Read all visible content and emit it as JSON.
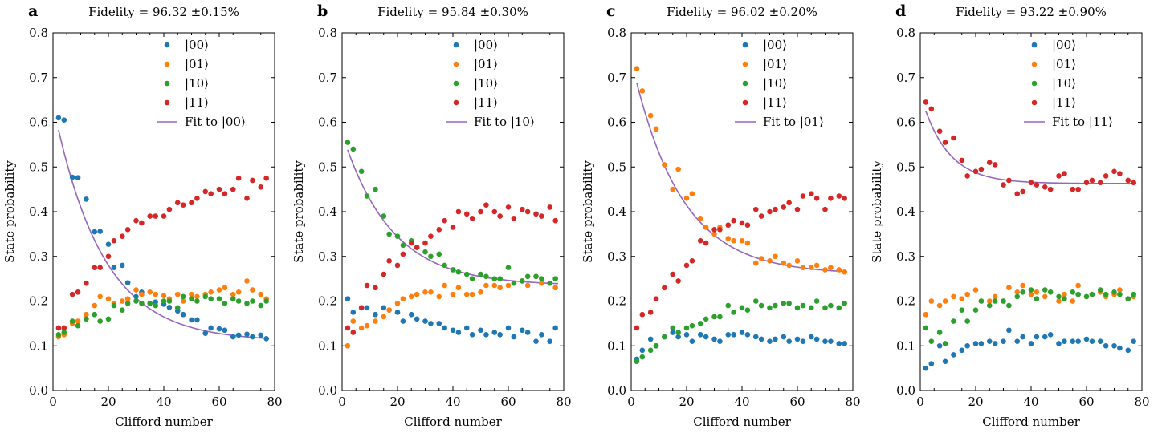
{
  "chart_data": [
    {
      "type": "scatter",
      "panel_label": "a",
      "title": "Fidelity = 96.32 ±0.15%",
      "xlabel": "Clifford number",
      "ylabel": "State probability",
      "xlim": [
        0,
        80
      ],
      "ylim": [
        0.0,
        0.8
      ],
      "xticks": [
        0,
        20,
        40,
        60,
        80
      ],
      "yticks": [
        0.0,
        0.1,
        0.2,
        0.3,
        0.4,
        0.5,
        0.6,
        0.7,
        0.8
      ],
      "grid": false,
      "legend_position": "top-right",
      "x": [
        2,
        4,
        7,
        9,
        12,
        15,
        17,
        20,
        22,
        25,
        27,
        30,
        32,
        35,
        37,
        40,
        42,
        45,
        47,
        50,
        52,
        55,
        57,
        60,
        62,
        65,
        67,
        70,
        72,
        75,
        77
      ],
      "series": [
        {
          "name": "|00⟩",
          "color": "#1f77b4",
          "values": [
            0.61,
            0.605,
            0.477,
            0.476,
            0.428,
            0.355,
            0.356,
            0.327,
            0.275,
            0.28,
            0.241,
            0.21,
            0.22,
            0.195,
            0.198,
            0.193,
            0.186,
            0.178,
            0.17,
            0.158,
            0.158,
            0.128,
            0.14,
            0.138,
            0.135,
            0.12,
            0.124,
            0.126,
            0.12,
            0.124,
            0.116
          ]
        },
        {
          "name": "|01⟩",
          "color": "#ff7f0e",
          "values": [
            0.12,
            0.125,
            0.15,
            0.155,
            0.17,
            0.19,
            0.21,
            0.205,
            0.195,
            0.2,
            0.205,
            0.225,
            0.215,
            0.22,
            0.215,
            0.212,
            0.205,
            0.215,
            0.2,
            0.215,
            0.21,
            0.215,
            0.22,
            0.225,
            0.23,
            0.215,
            0.22,
            0.245,
            0.225,
            0.215,
            0.205
          ]
        },
        {
          "name": "|10⟩",
          "color": "#2ca02c",
          "values": [
            0.125,
            0.13,
            0.155,
            0.145,
            0.16,
            0.17,
            0.155,
            0.16,
            0.19,
            0.18,
            0.195,
            0.2,
            0.195,
            0.195,
            0.19,
            0.2,
            0.2,
            0.185,
            0.21,
            0.205,
            0.2,
            0.21,
            0.205,
            0.205,
            0.195,
            0.205,
            0.2,
            0.195,
            0.2,
            0.19,
            0.2
          ]
        },
        {
          "name": "|11⟩",
          "color": "#d62728",
          "values": [
            0.14,
            0.14,
            0.215,
            0.22,
            0.24,
            0.275,
            0.275,
            0.3,
            0.335,
            0.345,
            0.36,
            0.38,
            0.375,
            0.39,
            0.39,
            0.39,
            0.405,
            0.42,
            0.415,
            0.42,
            0.43,
            0.445,
            0.44,
            0.45,
            0.44,
            0.45,
            0.475,
            0.43,
            0.47,
            0.455,
            0.475
          ]
        }
      ],
      "fit": {
        "name": "Fit to |00⟩",
        "color": "#9467bd",
        "a": 0.53,
        "p": 0.9448,
        "b": 0.11
      }
    },
    {
      "type": "scatter",
      "panel_label": "b",
      "title": "Fidelity = 95.84 ±0.30%",
      "xlabel": "Clifford number",
      "ylabel": "State probability",
      "xlim": [
        0,
        80
      ],
      "ylim": [
        0.0,
        0.8
      ],
      "xticks": [
        0,
        20,
        40,
        60,
        80
      ],
      "yticks": [
        0.0,
        0.1,
        0.2,
        0.3,
        0.4,
        0.5,
        0.6,
        0.7,
        0.8
      ],
      "grid": false,
      "legend_position": "top-right",
      "x": [
        2,
        4,
        7,
        9,
        12,
        15,
        17,
        20,
        22,
        25,
        27,
        30,
        32,
        35,
        37,
        40,
        42,
        45,
        47,
        50,
        52,
        55,
        57,
        60,
        62,
        65,
        67,
        70,
        72,
        75,
        77
      ],
      "series": [
        {
          "name": "|00⟩",
          "color": "#1f77b4",
          "values": [
            0.205,
            0.175,
            0.185,
            0.185,
            0.17,
            0.185,
            0.18,
            0.175,
            0.155,
            0.17,
            0.16,
            0.155,
            0.15,
            0.15,
            0.14,
            0.135,
            0.13,
            0.14,
            0.125,
            0.135,
            0.125,
            0.13,
            0.125,
            0.14,
            0.12,
            0.135,
            0.13,
            0.11,
            0.125,
            0.11,
            0.14
          ]
        },
        {
          "name": "|01⟩",
          "color": "#ff7f0e",
          "values": [
            0.1,
            0.155,
            0.14,
            0.145,
            0.155,
            0.165,
            0.18,
            0.195,
            0.205,
            0.21,
            0.215,
            0.22,
            0.22,
            0.21,
            0.235,
            0.215,
            0.23,
            0.215,
            0.215,
            0.22,
            0.235,
            0.235,
            0.23,
            0.235,
            0.24,
            0.245,
            0.235,
            0.255,
            0.24,
            0.24,
            0.23
          ]
        },
        {
          "name": "|10⟩",
          "color": "#2ca02c",
          "values": [
            0.555,
            0.54,
            0.49,
            0.435,
            0.45,
            0.39,
            0.35,
            0.345,
            0.325,
            0.335,
            0.32,
            0.31,
            0.3,
            0.305,
            0.28,
            0.27,
            0.265,
            0.26,
            0.25,
            0.26,
            0.255,
            0.25,
            0.25,
            0.275,
            0.24,
            0.245,
            0.255,
            0.255,
            0.25,
            0.24,
            0.25
          ]
        },
        {
          "name": "|11⟩",
          "color": "#d62728",
          "values": [
            0.14,
            0.13,
            0.185,
            0.235,
            0.23,
            0.26,
            0.29,
            0.28,
            0.305,
            0.33,
            0.32,
            0.33,
            0.345,
            0.36,
            0.38,
            0.365,
            0.4,
            0.395,
            0.385,
            0.4,
            0.415,
            0.4,
            0.39,
            0.41,
            0.385,
            0.405,
            0.4,
            0.395,
            0.39,
            0.41,
            0.38
          ]
        }
      ],
      "fit": {
        "name": "Fit to |10⟩",
        "color": "#9467bd",
        "a": 0.34,
        "p": 0.9448,
        "b": 0.235
      }
    },
    {
      "type": "scatter",
      "panel_label": "c",
      "title": "Fidelity = 96.02 ±0.20%",
      "xlabel": "Clifford number",
      "ylabel": "State probability",
      "xlim": [
        0,
        80
      ],
      "ylim": [
        0.0,
        0.8
      ],
      "xticks": [
        0,
        20,
        40,
        60,
        80
      ],
      "yticks": [
        0.0,
        0.1,
        0.2,
        0.3,
        0.4,
        0.5,
        0.6,
        0.7,
        0.8
      ],
      "grid": false,
      "legend_position": "top-right",
      "x": [
        2,
        4,
        7,
        9,
        12,
        15,
        17,
        20,
        22,
        25,
        27,
        30,
        32,
        35,
        37,
        40,
        42,
        45,
        47,
        50,
        52,
        55,
        57,
        60,
        62,
        65,
        67,
        70,
        72,
        75,
        77
      ],
      "series": [
        {
          "name": "|00⟩",
          "color": "#1f77b4",
          "values": [
            0.07,
            0.09,
            0.115,
            0.1,
            0.12,
            0.13,
            0.12,
            0.125,
            0.11,
            0.125,
            0.12,
            0.115,
            0.11,
            0.125,
            0.125,
            0.13,
            0.125,
            0.12,
            0.115,
            0.11,
            0.115,
            0.12,
            0.11,
            0.115,
            0.11,
            0.12,
            0.115,
            0.11,
            0.11,
            0.105,
            0.105
          ]
        },
        {
          "name": "|01⟩",
          "color": "#ff7f0e",
          "values": [
            0.72,
            0.67,
            0.615,
            0.585,
            0.505,
            0.45,
            0.495,
            0.43,
            0.44,
            0.385,
            0.365,
            0.35,
            0.365,
            0.34,
            0.335,
            0.335,
            0.33,
            0.285,
            0.295,
            0.29,
            0.3,
            0.285,
            0.28,
            0.29,
            0.275,
            0.275,
            0.28,
            0.27,
            0.275,
            0.27,
            0.265
          ]
        },
        {
          "name": "|10⟩",
          "color": "#2ca02c",
          "values": [
            0.065,
            0.075,
            0.09,
            0.1,
            0.12,
            0.14,
            0.13,
            0.14,
            0.145,
            0.15,
            0.16,
            0.165,
            0.165,
            0.19,
            0.175,
            0.185,
            0.18,
            0.2,
            0.19,
            0.185,
            0.19,
            0.195,
            0.195,
            0.185,
            0.19,
            0.185,
            0.2,
            0.185,
            0.19,
            0.185,
            0.195
          ]
        },
        {
          "name": "|11⟩",
          "color": "#d62728",
          "values": [
            0.14,
            0.17,
            0.175,
            0.205,
            0.23,
            0.26,
            0.245,
            0.28,
            0.29,
            0.335,
            0.33,
            0.36,
            0.36,
            0.37,
            0.38,
            0.375,
            0.37,
            0.405,
            0.39,
            0.4,
            0.405,
            0.41,
            0.42,
            0.405,
            0.435,
            0.44,
            0.43,
            0.405,
            0.43,
            0.435,
            0.43
          ]
        }
      ],
      "fit": {
        "name": "Fit to |01⟩",
        "color": "#9467bd",
        "a": 0.48,
        "p": 0.9448,
        "b": 0.26
      }
    },
    {
      "type": "scatter",
      "panel_label": "d",
      "title": "Fidelity = 93.22 ±0.90%",
      "xlabel": "Clifford number",
      "ylabel": "State probability",
      "xlim": [
        0,
        80
      ],
      "ylim": [
        0.0,
        0.8
      ],
      "xticks": [
        0,
        20,
        40,
        60,
        80
      ],
      "yticks": [
        0.0,
        0.1,
        0.2,
        0.3,
        0.4,
        0.5,
        0.6,
        0.7,
        0.8
      ],
      "grid": false,
      "legend_position": "top-right",
      "x": [
        2,
        4,
        7,
        9,
        12,
        15,
        17,
        20,
        22,
        25,
        27,
        30,
        32,
        35,
        37,
        40,
        42,
        45,
        47,
        50,
        52,
        55,
        57,
        60,
        62,
        65,
        67,
        70,
        72,
        75,
        77
      ],
      "series": [
        {
          "name": "|00⟩",
          "color": "#1f77b4",
          "values": [
            0.05,
            0.06,
            0.1,
            0.065,
            0.08,
            0.09,
            0.1,
            0.105,
            0.105,
            0.11,
            0.105,
            0.11,
            0.135,
            0.11,
            0.12,
            0.105,
            0.12,
            0.12,
            0.125,
            0.105,
            0.11,
            0.11,
            0.11,
            0.115,
            0.11,
            0.11,
            0.1,
            0.1,
            0.095,
            0.09,
            0.11
          ]
        },
        {
          "name": "|01⟩",
          "color": "#ff7f0e",
          "values": [
            0.17,
            0.2,
            0.19,
            0.2,
            0.21,
            0.205,
            0.215,
            0.225,
            0.2,
            0.2,
            0.21,
            0.2,
            0.23,
            0.22,
            0.235,
            0.215,
            0.22,
            0.21,
            0.22,
            0.2,
            0.215,
            0.2,
            0.235,
            0.21,
            0.215,
            0.22,
            0.21,
            0.215,
            0.225,
            0.205,
            0.21
          ]
        },
        {
          "name": "|10⟩",
          "color": "#2ca02c",
          "values": [
            0.14,
            0.11,
            0.13,
            0.105,
            0.155,
            0.18,
            0.155,
            0.18,
            0.2,
            0.19,
            0.2,
            0.2,
            0.19,
            0.21,
            0.22,
            0.225,
            0.205,
            0.225,
            0.22,
            0.21,
            0.205,
            0.22,
            0.215,
            0.21,
            0.215,
            0.225,
            0.215,
            0.22,
            0.215,
            0.205,
            0.215
          ]
        },
        {
          "name": "|11⟩",
          "color": "#d62728",
          "values": [
            0.645,
            0.63,
            0.58,
            0.555,
            0.565,
            0.515,
            0.48,
            0.49,
            0.495,
            0.51,
            0.505,
            0.46,
            0.47,
            0.44,
            0.445,
            0.465,
            0.46,
            0.455,
            0.45,
            0.48,
            0.485,
            0.45,
            0.45,
            0.465,
            0.47,
            0.465,
            0.48,
            0.49,
            0.485,
            0.47,
            0.465
          ]
        }
      ],
      "fit": {
        "name": "Fit to |11⟩",
        "color": "#9467bd",
        "a": 0.2,
        "p": 0.9,
        "b": 0.463
      }
    }
  ]
}
